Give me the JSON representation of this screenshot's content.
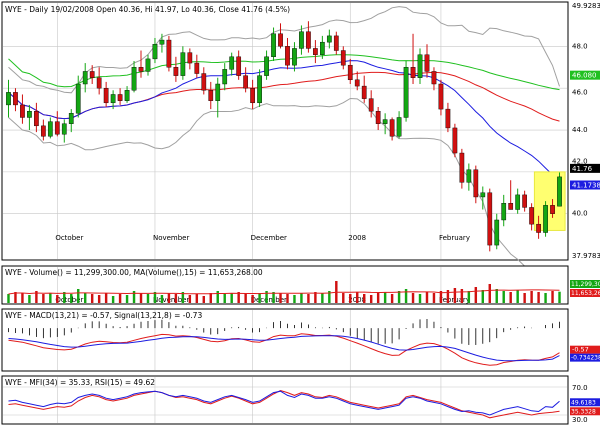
{
  "header": {
    "main": "WYE - Daily 19/02/2008 Open 40.36, Hi 41.97, Lo 40.36, Close 41.76 (4.5%)",
    "volume": "WYE - Volume() = 11,299,300.00, MA(Volume(),15) = 11,653,268.00",
    "macd": "WYE - MACD(13,21) = -0.57, Signal(13,21,8) = -0.73",
    "rsi": "WYE - MFI(34) = 35.33, RSI(15) = 49.62"
  },
  "colors": {
    "up": "#13a613",
    "down": "#d01010",
    "upper_band": "#a0a0a0",
    "ma_fast": "#1c1ce0",
    "ma_slow": "#e01c1c",
    "ma_long": "#20c020",
    "grid": "#c8c8c8",
    "highlight": "#ffff70",
    "axis_label_bg": "#1c1ce0"
  },
  "chart_data": [
    {
      "type": "candlestick",
      "x_labels": [
        "October",
        "November",
        "December",
        "2008",
        "February"
      ],
      "ylim": [
        37.9783,
        49.9283
      ],
      "y_ticks": [
        "49.9283",
        "48.0",
        "46.080",
        "46.0",
        "44.0",
        "42.0",
        "41.76",
        "41.1738",
        "40.0",
        "37.9783"
      ],
      "last_close": 41.76,
      "candles": [
        {
          "o": 45.2,
          "h": 46.4,
          "l": 44.6,
          "c": 45.8
        },
        {
          "o": 45.8,
          "h": 46.0,
          "l": 44.9,
          "c": 45.2
        },
        {
          "o": 45.2,
          "h": 45.7,
          "l": 44.3,
          "c": 44.6
        },
        {
          "o": 44.6,
          "h": 45.2,
          "l": 44.0,
          "c": 44.9
        },
        {
          "o": 44.9,
          "h": 45.3,
          "l": 43.9,
          "c": 44.2
        },
        {
          "o": 44.2,
          "h": 44.5,
          "l": 43.5,
          "c": 43.7
        },
        {
          "o": 43.7,
          "h": 44.6,
          "l": 43.6,
          "c": 44.4
        },
        {
          "o": 44.4,
          "h": 44.9,
          "l": 43.7,
          "c": 43.8
        },
        {
          "o": 43.8,
          "h": 44.5,
          "l": 43.4,
          "c": 44.3
        },
        {
          "o": 44.3,
          "h": 45.0,
          "l": 43.9,
          "c": 44.8
        },
        {
          "o": 44.8,
          "h": 46.6,
          "l": 44.6,
          "c": 46.2
        },
        {
          "o": 46.2,
          "h": 47.2,
          "l": 45.8,
          "c": 46.8
        },
        {
          "o": 46.8,
          "h": 47.1,
          "l": 46.2,
          "c": 46.5
        },
        {
          "o": 46.5,
          "h": 47.0,
          "l": 45.7,
          "c": 46.0
        },
        {
          "o": 46.0,
          "h": 46.3,
          "l": 45.1,
          "c": 45.3
        },
        {
          "o": 45.3,
          "h": 45.9,
          "l": 45.0,
          "c": 45.7
        },
        {
          "o": 45.7,
          "h": 46.0,
          "l": 45.2,
          "c": 45.4
        },
        {
          "o": 45.4,
          "h": 46.1,
          "l": 45.3,
          "c": 45.9
        },
        {
          "o": 45.9,
          "h": 47.3,
          "l": 45.8,
          "c": 47.0
        },
        {
          "o": 47.0,
          "h": 47.8,
          "l": 46.5,
          "c": 46.8
        },
        {
          "o": 46.8,
          "h": 47.6,
          "l": 46.6,
          "c": 47.4
        },
        {
          "o": 47.4,
          "h": 48.4,
          "l": 47.2,
          "c": 48.1
        },
        {
          "o": 48.1,
          "h": 48.6,
          "l": 47.7,
          "c": 48.3
        },
        {
          "o": 48.3,
          "h": 48.5,
          "l": 46.8,
          "c": 47.0
        },
        {
          "o": 47.0,
          "h": 47.5,
          "l": 46.3,
          "c": 46.6
        },
        {
          "o": 46.6,
          "h": 48.0,
          "l": 46.4,
          "c": 47.7
        },
        {
          "o": 47.7,
          "h": 47.9,
          "l": 46.9,
          "c": 47.2
        },
        {
          "o": 47.2,
          "h": 47.6,
          "l": 46.5,
          "c": 46.7
        },
        {
          "o": 46.7,
          "h": 47.0,
          "l": 45.7,
          "c": 45.9
        },
        {
          "o": 45.9,
          "h": 46.3,
          "l": 45.0,
          "c": 45.4
        },
        {
          "o": 45.4,
          "h": 46.5,
          "l": 44.6,
          "c": 46.2
        },
        {
          "o": 46.2,
          "h": 47.2,
          "l": 45.9,
          "c": 46.9
        },
        {
          "o": 46.9,
          "h": 47.7,
          "l": 46.6,
          "c": 47.5
        },
        {
          "o": 47.5,
          "h": 47.8,
          "l": 46.4,
          "c": 46.6
        },
        {
          "o": 46.6,
          "h": 47.0,
          "l": 45.8,
          "c": 46.0
        },
        {
          "o": 46.0,
          "h": 46.4,
          "l": 45.0,
          "c": 45.3
        },
        {
          "o": 45.3,
          "h": 46.9,
          "l": 45.1,
          "c": 46.6
        },
        {
          "o": 46.6,
          "h": 47.8,
          "l": 46.4,
          "c": 47.5
        },
        {
          "o": 47.5,
          "h": 48.9,
          "l": 47.3,
          "c": 48.6
        },
        {
          "o": 48.6,
          "h": 49.1,
          "l": 47.9,
          "c": 48.0
        },
        {
          "o": 48.0,
          "h": 48.4,
          "l": 46.9,
          "c": 47.1
        },
        {
          "o": 47.1,
          "h": 48.2,
          "l": 46.8,
          "c": 47.9
        },
        {
          "o": 47.9,
          "h": 49.0,
          "l": 47.6,
          "c": 48.7
        },
        {
          "o": 48.7,
          "h": 49.2,
          "l": 47.7,
          "c": 47.9
        },
        {
          "o": 47.9,
          "h": 48.3,
          "l": 47.2,
          "c": 47.6
        },
        {
          "o": 47.6,
          "h": 48.5,
          "l": 47.4,
          "c": 48.2
        },
        {
          "o": 48.2,
          "h": 48.8,
          "l": 47.9,
          "c": 48.5
        },
        {
          "o": 48.5,
          "h": 48.7,
          "l": 47.6,
          "c": 47.8
        },
        {
          "o": 47.8,
          "h": 48.0,
          "l": 46.9,
          "c": 47.1
        },
        {
          "o": 47.1,
          "h": 47.4,
          "l": 46.2,
          "c": 46.4
        },
        {
          "o": 46.4,
          "h": 46.8,
          "l": 45.9,
          "c": 46.1
        },
        {
          "o": 46.1,
          "h": 46.6,
          "l": 45.3,
          "c": 45.5
        },
        {
          "o": 45.5,
          "h": 45.9,
          "l": 44.6,
          "c": 44.9
        },
        {
          "o": 44.9,
          "h": 45.1,
          "l": 44.0,
          "c": 44.3
        },
        {
          "o": 44.3,
          "h": 44.8,
          "l": 43.8,
          "c": 44.5
        },
        {
          "o": 44.5,
          "h": 44.6,
          "l": 43.5,
          "c": 43.7
        },
        {
          "o": 43.7,
          "h": 44.9,
          "l": 43.6,
          "c": 44.6
        },
        {
          "o": 44.6,
          "h": 47.3,
          "l": 44.4,
          "c": 47.0
        },
        {
          "o": 47.0,
          "h": 48.6,
          "l": 46.2,
          "c": 46.5
        },
        {
          "o": 46.5,
          "h": 47.9,
          "l": 46.2,
          "c": 47.6
        },
        {
          "o": 47.6,
          "h": 48.1,
          "l": 46.5,
          "c": 46.8
        },
        {
          "o": 46.8,
          "h": 47.0,
          "l": 45.9,
          "c": 46.2
        },
        {
          "o": 46.2,
          "h": 46.4,
          "l": 44.7,
          "c": 45.0
        },
        {
          "o": 45.0,
          "h": 45.3,
          "l": 43.9,
          "c": 44.1
        },
        {
          "o": 44.1,
          "h": 44.3,
          "l": 42.7,
          "c": 42.9
        },
        {
          "o": 42.9,
          "h": 43.1,
          "l": 41.2,
          "c": 41.5
        },
        {
          "o": 41.5,
          "h": 42.4,
          "l": 41.1,
          "c": 42.1
        },
        {
          "o": 42.1,
          "h": 42.3,
          "l": 40.5,
          "c": 40.8
        },
        {
          "o": 40.8,
          "h": 41.3,
          "l": 40.2,
          "c": 41.0
        },
        {
          "o": 41.0,
          "h": 41.2,
          "l": 38.2,
          "c": 38.5
        },
        {
          "o": 38.5,
          "h": 40.0,
          "l": 38.3,
          "c": 39.7
        },
        {
          "o": 39.7,
          "h": 40.9,
          "l": 39.4,
          "c": 40.5
        },
        {
          "o": 40.5,
          "h": 41.6,
          "l": 40.2,
          "c": 40.2
        },
        {
          "o": 40.2,
          "h": 41.2,
          "l": 40.0,
          "c": 40.9
        },
        {
          "o": 40.9,
          "h": 41.1,
          "l": 40.1,
          "c": 40.3
        },
        {
          "o": 40.3,
          "h": 40.5,
          "l": 39.2,
          "c": 39.5
        },
        {
          "o": 39.5,
          "h": 39.9,
          "l": 38.8,
          "c": 39.1
        },
        {
          "o": 39.1,
          "h": 40.6,
          "l": 38.9,
          "c": 40.4
        },
        {
          "o": 40.4,
          "h": 40.7,
          "l": 39.8,
          "c": 40.0
        },
        {
          "o": 40.36,
          "h": 41.97,
          "l": 40.36,
          "c": 41.76
        }
      ]
    },
    {
      "type": "bar",
      "title": "Volume",
      "ylim": [
        0,
        25000000
      ],
      "y_ticks": [
        "11,299,300",
        "11,653,268"
      ],
      "values": [
        9,
        11,
        10,
        8,
        12,
        9,
        10,
        8,
        11,
        9,
        14,
        10,
        9,
        8,
        10,
        7,
        9,
        8,
        12,
        10,
        9,
        11,
        8,
        10,
        9,
        11,
        8,
        9,
        7,
        10,
        12,
        9,
        10,
        11,
        9,
        8,
        10,
        12,
        11,
        10,
        9,
        8,
        10,
        9,
        11,
        10,
        12,
        22,
        10,
        9,
        11,
        9,
        8,
        10,
        11,
        9,
        12,
        14,
        10,
        9,
        11,
        10,
        12,
        13,
        15,
        14,
        12,
        16,
        13,
        19,
        14,
        12,
        11,
        13,
        10,
        12,
        11,
        10,
        12,
        11.3
      ]
    },
    {
      "type": "line",
      "title": "MACD",
      "ylim": [
        -1.4,
        1.2
      ],
      "y_ticks": [
        "-0.57",
        "-0.734238"
      ],
      "series": [
        {
          "name": "MACD(13,21)",
          "values": [
            0.1,
            0.05,
            0.0,
            -0.1,
            -0.2,
            -0.3,
            -0.35,
            -0.4,
            -0.42,
            -0.38,
            -0.25,
            -0.1,
            0.0,
            0.05,
            0.02,
            -0.02,
            -0.03,
            0.0,
            0.1,
            0.2,
            0.28,
            0.35,
            0.42,
            0.4,
            0.33,
            0.35,
            0.32,
            0.25,
            0.15,
            0.05,
            0.02,
            0.08,
            0.18,
            0.2,
            0.12,
            0.02,
            0.0,
            0.12,
            0.3,
            0.38,
            0.35,
            0.35,
            0.45,
            0.42,
            0.36,
            0.36,
            0.38,
            0.32,
            0.22,
            0.08,
            -0.05,
            -0.2,
            -0.35,
            -0.5,
            -0.62,
            -0.72,
            -0.7,
            -0.45,
            -0.28,
            -0.12,
            -0.05,
            -0.08,
            -0.2,
            -0.38,
            -0.6,
            -0.85,
            -1.0,
            -1.12,
            -1.2,
            -1.25,
            -1.22,
            -1.1,
            -1.05,
            -0.98,
            -0.95,
            -0.97,
            -0.98,
            -0.88,
            -0.8,
            -0.57
          ]
        },
        {
          "name": "Signal(13,21,8)",
          "values": [
            0.2,
            0.17,
            0.13,
            0.08,
            0.02,
            -0.05,
            -0.12,
            -0.18,
            -0.24,
            -0.27,
            -0.26,
            -0.22,
            -0.17,
            -0.12,
            -0.09,
            -0.07,
            -0.06,
            -0.05,
            -0.01,
            0.04,
            0.1,
            0.15,
            0.21,
            0.25,
            0.27,
            0.29,
            0.3,
            0.29,
            0.26,
            0.21,
            0.17,
            0.15,
            0.16,
            0.17,
            0.16,
            0.13,
            0.1,
            0.11,
            0.15,
            0.2,
            0.24,
            0.27,
            0.31,
            0.33,
            0.34,
            0.35,
            0.35,
            0.35,
            0.32,
            0.27,
            0.2,
            0.11,
            0.01,
            -0.11,
            -0.23,
            -0.34,
            -0.42,
            -0.43,
            -0.4,
            -0.34,
            -0.28,
            -0.24,
            -0.23,
            -0.27,
            -0.34,
            -0.46,
            -0.58,
            -0.7,
            -0.81,
            -0.9,
            -0.97,
            -1.0,
            -1.01,
            -1.0,
            -0.99,
            -0.98,
            -0.98,
            -0.96,
            -0.92,
            -0.73
          ]
        }
      ]
    },
    {
      "type": "line",
      "title": "MFI / RSI",
      "ylim": [
        20,
        80
      ],
      "y_ticks": [
        "70.0",
        "49.6183",
        "35.3328",
        "30.0"
      ],
      "series": [
        {
          "name": "MFI(34)",
          "values": [
            45,
            46,
            44,
            42,
            40,
            38,
            40,
            42,
            41,
            43,
            50,
            55,
            58,
            56,
            52,
            50,
            52,
            54,
            58,
            60,
            62,
            64,
            62,
            58,
            55,
            56,
            54,
            52,
            48,
            46,
            50,
            54,
            57,
            54,
            50,
            46,
            48,
            54,
            60,
            65,
            62,
            58,
            62,
            60,
            56,
            55,
            58,
            56,
            52,
            48,
            46,
            44,
            42,
            40,
            42,
            44,
            46,
            56,
            58,
            55,
            52,
            50,
            48,
            44,
            40,
            36,
            34,
            32,
            30,
            26,
            28,
            30,
            32,
            34,
            32,
            30,
            32,
            33,
            34,
            35.33
          ]
        },
        {
          "name": "RSI(15)",
          "values": [
            50,
            51,
            48,
            46,
            44,
            42,
            45,
            47,
            46,
            48,
            55,
            58,
            60,
            58,
            54,
            52,
            54,
            56,
            60,
            62,
            63,
            64,
            62,
            58,
            56,
            58,
            56,
            54,
            50,
            48,
            52,
            56,
            58,
            55,
            52,
            48,
            50,
            56,
            62,
            64,
            58,
            55,
            60,
            58,
            54,
            54,
            56,
            54,
            50,
            46,
            44,
            42,
            40,
            38,
            40,
            42,
            44,
            54,
            56,
            54,
            50,
            48,
            46,
            42,
            38,
            35,
            36,
            34,
            33,
            30,
            34,
            38,
            40,
            42,
            39,
            36,
            35,
            42,
            41,
            49.62
          ]
        }
      ]
    }
  ]
}
